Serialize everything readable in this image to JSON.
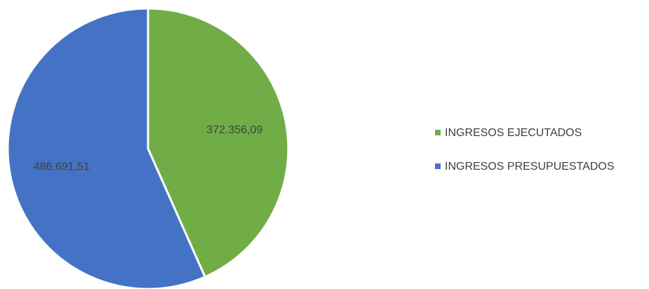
{
  "chart_data": {
    "type": "pie",
    "categories": [
      "INGRESOS EJECUTADOS",
      "INGRESOS PRESUPUESTADOS"
    ],
    "values": [
      372356.09,
      486691.51
    ],
    "value_labels": [
      "372.356,09",
      "486.691,51"
    ],
    "colors": [
      "#70ad47",
      "#4472c4"
    ],
    "legend": "right"
  }
}
